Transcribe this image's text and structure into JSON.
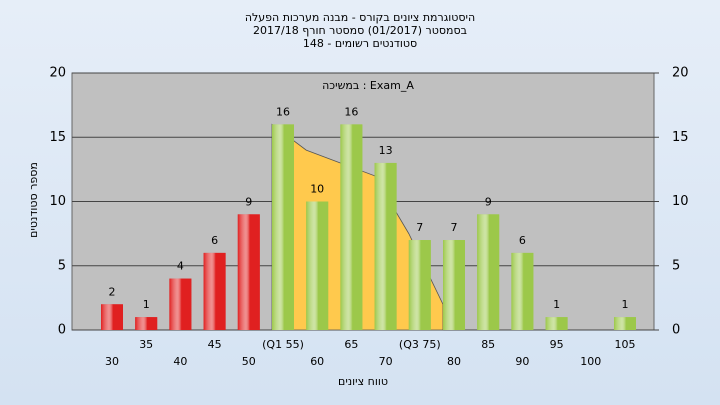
{
  "chart_data": {
    "type": "bar",
    "title": [
      "היסטוגרמת ציונים בקורס - מבנה מערכות הפעלה",
      "בסמסטר (01/2017)  סמסטר חורף 2017/18",
      "סטודנטים רשומים - 148"
    ],
    "annotation": "במשיכה : Exam_A",
    "x_label": "טווח ציונים",
    "y_label": "מספר סטודנטים",
    "categories": [
      "30",
      "35",
      "40",
      "45",
      "50",
      "(Q1 55)",
      "60",
      "65",
      "70",
      "(Q3 75)",
      "80",
      "85",
      "90",
      "95",
      "100",
      "105"
    ],
    "values": [
      2,
      1,
      4,
      6,
      9,
      16,
      10,
      16,
      13,
      7,
      7,
      9,
      6,
      1,
      null,
      1
    ],
    "colors": [
      "#e02020",
      "#e02020",
      "#e02020",
      "#e02020",
      "#e02020",
      "#9cc84a",
      "#9cc84a",
      "#9cc84a",
      "#9cc84a",
      "#9cc84a",
      "#9cc84a",
      "#9cc84a",
      "#9cc84a",
      "#9cc84a",
      "#9cc84a",
      "#9cc84a"
    ],
    "curve": {
      "color": "#ffc94d",
      "values": [
        null,
        null,
        null,
        null,
        null,
        16,
        14,
        13,
        12,
        7.5,
        2,
        null,
        null,
        null,
        null,
        null
      ]
    },
    "ylim": [
      0,
      20
    ],
    "yticks": [
      0,
      5,
      10,
      15,
      20
    ],
    "y2lim": [
      0,
      20
    ],
    "y2ticks": [
      0,
      5,
      10,
      15,
      20
    ],
    "grid": true
  }
}
